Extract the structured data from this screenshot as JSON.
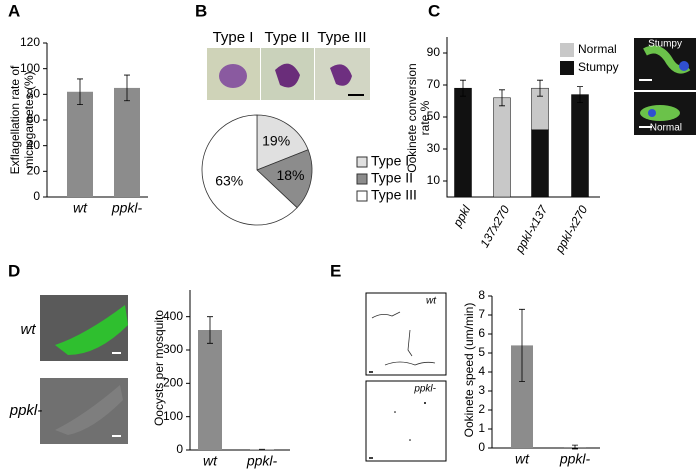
{
  "chart_data": [
    {
      "type": "bar",
      "panel": "A",
      "ylabel": [
        "Exflagellation rate of",
        "microgametes (%)"
      ],
      "categories": [
        "wt",
        "ppkl-"
      ],
      "values": [
        82,
        85
      ],
      "errors": [
        10,
        10
      ],
      "color": "#8c8c8c",
      "ylim": [
        0,
        120
      ],
      "yticks": [
        0,
        20,
        40,
        60,
        80,
        100,
        120
      ]
    },
    {
      "type": "pie",
      "panel": "B",
      "image_labels": [
        "Type I",
        "Type II",
        "Type III"
      ],
      "categories": [
        "Type I",
        "Type II",
        "Type III"
      ],
      "values": [
        19,
        18,
        63
      ],
      "value_labels": [
        "19%",
        "18%",
        "63%"
      ],
      "colors": [
        "#e0e0e0",
        "#8c8c8c",
        "#ffffff"
      ]
    },
    {
      "type": "stacked-bar",
      "panel": "C",
      "ylabel": [
        "Ookinete conversion",
        "rate %"
      ],
      "categories": [
        "ppkl",
        "137x270",
        "ppkl-x137",
        "ppkl-x270"
      ],
      "series": [
        {
          "name": "Stumpy",
          "color": "#111111",
          "values": [
            68,
            0,
            42,
            64
          ]
        },
        {
          "name": "Normal",
          "color": "#c8c8c8",
          "values": [
            0,
            62,
            26,
            0
          ]
        }
      ],
      "errors": [
        5,
        5,
        5,
        5
      ],
      "ylim": [
        0,
        100
      ],
      "yticks": [
        10,
        30,
        50,
        70,
        90
      ],
      "image_labels": [
        "Stumpy",
        "Normal"
      ]
    },
    {
      "type": "bar",
      "panel": "D",
      "image_labels": [
        "wt",
        "ppkl-"
      ],
      "ylabel": [
        "Oocysts per mosquito"
      ],
      "categories": [
        "wt",
        "ppkl-"
      ],
      "values": [
        360,
        2
      ],
      "errors": [
        40,
        0
      ],
      "color": "#8c8c8c",
      "ylim": [
        0,
        480
      ],
      "yticks": [
        0,
        100,
        200,
        300,
        400
      ]
    },
    {
      "type": "bar",
      "panel": "E",
      "image_labels": [
        "wt",
        "ppkl-"
      ],
      "ylabel": [
        "Ookinete speed (um/min)"
      ],
      "categories": [
        "wt",
        "ppkl-"
      ],
      "values": [
        5.4,
        0.05
      ],
      "errors": [
        1.9,
        0.1
      ],
      "color": "#8c8c8c",
      "ylim": [
        0,
        8
      ],
      "yticks": [
        0,
        1,
        2,
        3,
        4,
        5,
        6,
        7,
        8
      ]
    }
  ]
}
